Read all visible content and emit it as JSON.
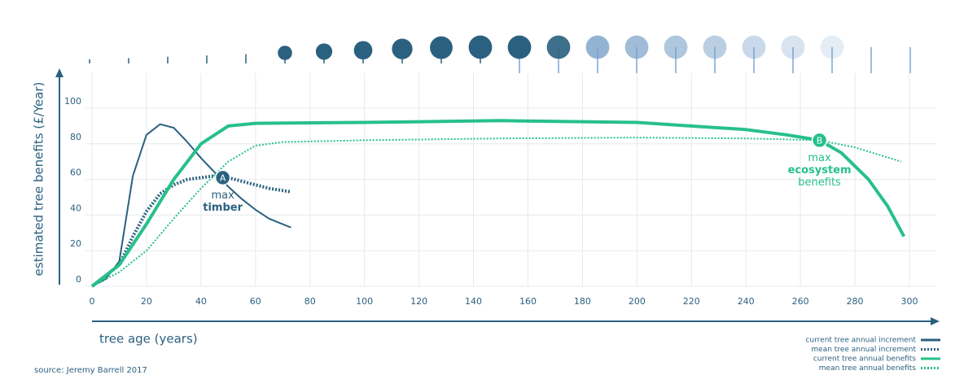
{
  "chart_data": {
    "type": "line",
    "ylabel": "estimated tree benefits (£/Year)",
    "xlabel": "tree age (years)",
    "source": "source: Jeremy Barrell 2017",
    "xlim": [
      0,
      300
    ],
    "ylim": [
      0,
      100
    ],
    "xticks": [
      0,
      20,
      40,
      60,
      80,
      100,
      120,
      140,
      160,
      180,
      200,
      220,
      240,
      260,
      280,
      300
    ],
    "yticks": [
      0,
      20,
      40,
      60,
      80,
      100
    ],
    "grid": true,
    "legend": "lower right",
    "series": [
      {
        "name": "current tree annual increment",
        "color": "#2b6180",
        "dashed": false,
        "width": 2,
        "x": [
          0,
          5,
          10,
          15,
          20,
          25,
          30,
          35,
          40,
          45,
          50,
          55,
          60,
          65,
          73
        ],
        "values": [
          0,
          4,
          14,
          62,
          85,
          91,
          89,
          81,
          72,
          64,
          56,
          49,
          43,
          38,
          33
        ]
      },
      {
        "name": "mean tree annual increment",
        "color": "#2b6180",
        "dashed": true,
        "width": 4,
        "x": [
          0,
          10,
          15,
          20,
          25,
          30,
          35,
          40,
          45,
          50,
          55,
          60,
          65,
          73
        ],
        "values": [
          0,
          12,
          28,
          42,
          52,
          57,
          60,
          61,
          62,
          61,
          59,
          57,
          55,
          53
        ]
      },
      {
        "name": "current tree annual benefits",
        "color": "#27c08a",
        "dashed": false,
        "width": 4,
        "x": [
          0,
          10,
          20,
          30,
          40,
          50,
          60,
          100,
          150,
          200,
          240,
          255,
          267,
          275,
          285,
          292,
          298
        ],
        "values": [
          0,
          12,
          35,
          60,
          80,
          90,
          91.5,
          92,
          93,
          92,
          88,
          85,
          82,
          75,
          60,
          45,
          28
        ]
      },
      {
        "name": "mean tree annual benefits",
        "color": "#27c08a",
        "dashed": true,
        "width": 2,
        "x": [
          0,
          10,
          20,
          30,
          40,
          50,
          60,
          70,
          100,
          150,
          200,
          240,
          267,
          280,
          297
        ],
        "values": [
          0,
          8,
          20,
          38,
          55,
          70,
          79,
          81,
          82,
          83,
          83.5,
          83,
          82,
          78,
          70
        ]
      }
    ],
    "annotations": [
      {
        "label": "A",
        "x": 48,
        "y": 61,
        "color": "#2b6180",
        "lines": [
          "max",
          "timber"
        ]
      },
      {
        "label": "B",
        "x": 267,
        "y": 82,
        "color": "#27c08a",
        "lines": [
          "max",
          "ecosystem",
          "benefits"
        ]
      }
    ]
  }
}
